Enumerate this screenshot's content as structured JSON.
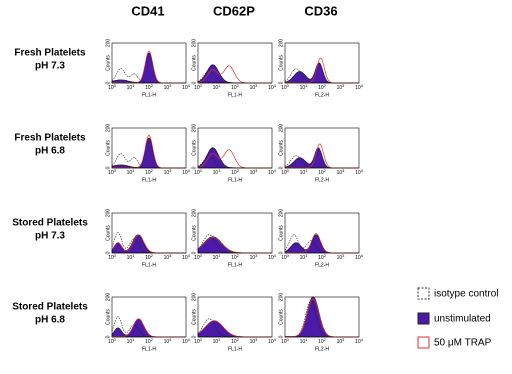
{
  "columns": [
    "CD41",
    "CD62P",
    "CD36"
  ],
  "rows": [
    {
      "lines": [
        "Fresh Platelets",
        "pH 7.3"
      ]
    },
    {
      "lines": [
        "Fresh Platelets",
        "pH 6.8"
      ]
    },
    {
      "lines": [
        "Stored Platelets",
        "pH 7.3"
      ]
    },
    {
      "lines": [
        "Stored Platelets",
        "pH 6.8"
      ]
    }
  ],
  "panel": {
    "y_label": "Counts",
    "y_ticks": [
      200,
      0
    ],
    "x_tick_base": "10",
    "x_tick_exponents": [
      0,
      1,
      2,
      3,
      4
    ],
    "x_labels": [
      "FL1-H",
      "FL1-H",
      "FL2-H"
    ]
  },
  "legend": [
    "isotype control",
    "unstimulated",
    "50 μM TRAP"
  ]
}
